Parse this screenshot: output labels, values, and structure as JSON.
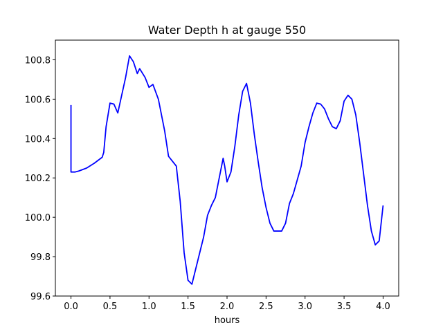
{
  "chart_data": {
    "type": "line",
    "title": "Water Depth h at gauge 550",
    "xlabel": "hours",
    "ylabel": "",
    "xlim": [
      -0.2,
      4.2
    ],
    "ylim": [
      99.6,
      100.9
    ],
    "xticks": [
      0.0,
      0.5,
      1.0,
      1.5,
      2.0,
      2.5,
      3.0,
      3.5,
      4.0
    ],
    "xtick_labels": [
      "0.0",
      "0.5",
      "1.0",
      "1.5",
      "2.0",
      "2.5",
      "3.0",
      "3.5",
      "4.0"
    ],
    "yticks": [
      99.6,
      99.8,
      100.0,
      100.2,
      100.4,
      100.6,
      100.8
    ],
    "ytick_labels": [
      "99.6",
      "99.8",
      "100.0",
      "100.2",
      "100.4",
      "100.6",
      "100.8"
    ],
    "grid": false,
    "series": [
      {
        "color": "#0000ff",
        "x": [
          0.0,
          0.0,
          0.05,
          0.1,
          0.2,
          0.3,
          0.4,
          0.42,
          0.45,
          0.5,
          0.55,
          0.6,
          0.65,
          0.7,
          0.75,
          0.8,
          0.85,
          0.88,
          0.95,
          1.0,
          1.05,
          1.12,
          1.2,
          1.25,
          1.3,
          1.35,
          1.4,
          1.45,
          1.5,
          1.55,
          1.6,
          1.65,
          1.7,
          1.75,
          1.8,
          1.85,
          1.9,
          1.95,
          1.97,
          2.0,
          2.05,
          2.1,
          2.15,
          2.2,
          2.25,
          2.3,
          2.35,
          2.4,
          2.45,
          2.5,
          2.55,
          2.6,
          2.65,
          2.7,
          2.75,
          2.8,
          2.85,
          2.9,
          2.95,
          3.0,
          3.05,
          3.1,
          3.15,
          3.2,
          3.25,
          3.3,
          3.35,
          3.4,
          3.45,
          3.5,
          3.55,
          3.6,
          3.65,
          3.7,
          3.75,
          3.8,
          3.85,
          3.9,
          3.95,
          4.0
        ],
        "y": [
          100.57,
          100.23,
          100.23,
          100.235,
          100.25,
          100.275,
          100.305,
          100.33,
          100.46,
          100.58,
          100.575,
          100.53,
          100.62,
          100.71,
          100.82,
          100.79,
          100.73,
          100.755,
          100.71,
          100.66,
          100.675,
          100.6,
          100.44,
          100.31,
          100.285,
          100.26,
          100.08,
          99.82,
          99.68,
          99.66,
          99.74,
          99.82,
          99.9,
          100.01,
          100.06,
          100.1,
          100.2,
          100.3,
          100.26,
          100.18,
          100.23,
          100.36,
          100.52,
          100.64,
          100.68,
          100.58,
          100.42,
          100.28,
          100.15,
          100.05,
          99.97,
          99.93,
          99.93,
          99.93,
          99.97,
          100.07,
          100.12,
          100.19,
          100.26,
          100.38,
          100.46,
          100.53,
          100.58,
          100.575,
          100.55,
          100.5,
          100.46,
          100.45,
          100.49,
          100.59,
          100.62,
          100.6,
          100.52,
          100.38,
          100.22,
          100.06,
          99.93,
          99.86,
          99.88,
          100.06
        ]
      }
    ]
  }
}
